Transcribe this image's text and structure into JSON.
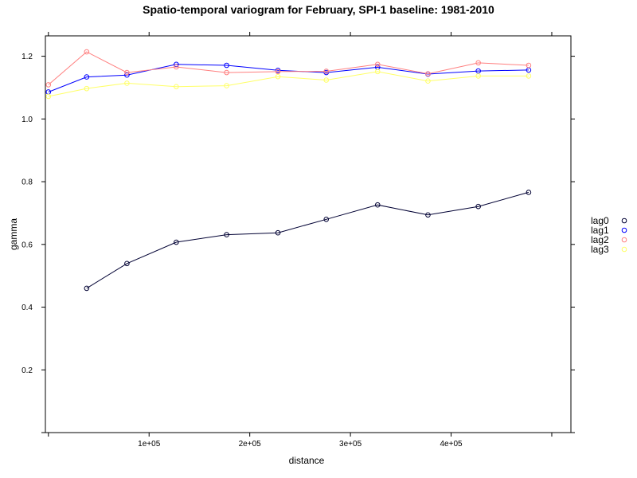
{
  "chart_data": {
    "type": "line",
    "title": "Spatio-temporal variogram for February, SPI-1 baseline: 1981-2010",
    "xlabel": "distance",
    "ylabel": "gamma",
    "xlim": [
      -3000,
      519000
    ],
    "ylim": [
      0.0,
      1.265
    ],
    "x_ticks": [
      100000,
      200000,
      300000,
      400000
    ],
    "x_tick_labels": [
      "1e+05",
      "2e+05",
      "3e+05",
      "4e+05"
    ],
    "y_ticks": [
      0.2,
      0.4,
      0.6,
      0.8,
      1.0,
      1.2
    ],
    "y_tick_labels": [
      "0.2",
      "0.4",
      "0.6",
      "0.8",
      "1.0",
      "1.2"
    ],
    "grid": false,
    "legend_position": "right",
    "series": [
      {
        "name": "lag0",
        "color": "#000033",
        "x": [
          38000,
          78000,
          127000,
          177000,
          228000,
          276000,
          327000,
          377000,
          427000,
          477000
        ],
        "values": [
          0.46,
          0.539,
          0.607,
          0.631,
          0.637,
          0.68,
          0.726,
          0.694,
          0.721,
          0.766
        ]
      },
      {
        "name": "lag1",
        "color": "#0000ff",
        "x": [
          0,
          38000,
          78000,
          127000,
          177000,
          228000,
          276000,
          327000,
          377000,
          427000,
          477000
        ],
        "values": [
          1.086,
          1.134,
          1.14,
          1.174,
          1.171,
          1.155,
          1.148,
          1.165,
          1.143,
          1.153,
          1.156
        ]
      },
      {
        "name": "lag2",
        "color": "#ff8080",
        "x": [
          0,
          38000,
          78000,
          127000,
          177000,
          228000,
          276000,
          327000,
          377000,
          427000,
          477000
        ],
        "values": [
          1.109,
          1.214,
          1.148,
          1.166,
          1.148,
          1.151,
          1.152,
          1.174,
          1.144,
          1.179,
          1.171
        ]
      },
      {
        "name": "lag3",
        "color": "#ffff66",
        "x": [
          0,
          38000,
          78000,
          127000,
          177000,
          228000,
          276000,
          327000,
          377000,
          427000,
          477000
        ],
        "values": [
          1.072,
          1.097,
          1.114,
          1.103,
          1.106,
          1.135,
          1.124,
          1.151,
          1.121,
          1.137,
          1.137
        ]
      }
    ]
  }
}
